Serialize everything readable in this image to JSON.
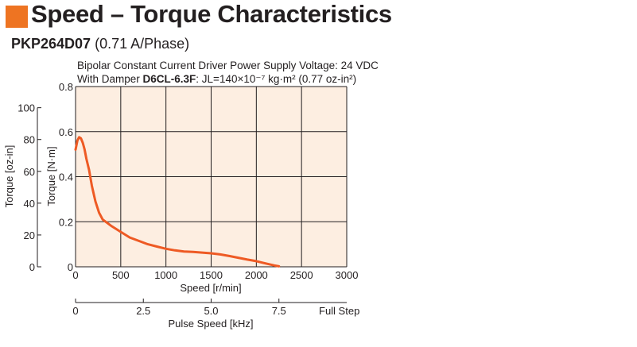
{
  "page": {
    "title": "Speed – Torque Characteristics",
    "model": "PKP264D07",
    "model_spec": "(0.71 A/Phase)"
  },
  "conditions": {
    "driver_line": "Bipolar Constant Current Driver  Power Supply Voltage: 24 VDC",
    "damper_prefix": "With Damper ",
    "damper_model": "D6CL-6.3F",
    "inertia_text": ": JL=140×10⁻⁷ kg·m² (0.77 oz-in²)"
  },
  "colors": {
    "plot_background": "#fdeee1",
    "curve": "#ee5a24",
    "accent": "#ee7422",
    "grid": "#231f20"
  },
  "chart_data": {
    "type": "line",
    "title": "",
    "xlabel": "Speed [r/min]",
    "ylabel": "Torque [N·m]",
    "ylabel_secondary": "Torque [oz-in]",
    "x2label": "Pulse Speed [kHz]",
    "xlim": [
      0,
      3000
    ],
    "ylim": [
      0,
      0.8
    ],
    "ylim_secondary": [
      0,
      113.3
    ],
    "x_ticks": [
      0,
      500,
      1000,
      1500,
      2000,
      2500,
      3000
    ],
    "x_tick_labels": [
      "0",
      "500",
      "1000",
      "1500",
      "2000",
      "2500",
      "3000"
    ],
    "y_ticks": [
      0,
      0.2,
      0.4,
      0.6,
      0.8
    ],
    "y_tick_labels": [
      "0",
      "0.2",
      "0.4",
      "0.6",
      "0.8"
    ],
    "y2_ticks": [
      0,
      20,
      40,
      60,
      80,
      100
    ],
    "y2_tick_labels": [
      "0",
      "20",
      "40",
      "60",
      "80",
      "100"
    ],
    "x2_ticks": [
      0,
      750,
      1500,
      2250
    ],
    "x2_tick_labels": [
      "0",
      "2.5",
      "5.0",
      "7.5"
    ],
    "x2_end_label": "Full Step",
    "grid": true,
    "series": [
      {
        "x": [
          0,
          20,
          40,
          60,
          80,
          100,
          120,
          150,
          180,
          220,
          260,
          300,
          350,
          400,
          500,
          600,
          700,
          800,
          900,
          1000,
          1100,
          1200,
          1300,
          1400,
          1500,
          1600,
          1700,
          1800,
          1900,
          2000,
          2100,
          2200,
          2250
        ],
        "y": [
          0.52,
          0.56,
          0.575,
          0.57,
          0.55,
          0.52,
          0.48,
          0.43,
          0.36,
          0.29,
          0.24,
          0.21,
          0.195,
          0.18,
          0.155,
          0.13,
          0.115,
          0.1,
          0.09,
          0.08,
          0.073,
          0.068,
          0.066,
          0.063,
          0.06,
          0.055,
          0.048,
          0.04,
          0.032,
          0.025,
          0.015,
          0.006,
          0.002
        ]
      }
    ]
  }
}
